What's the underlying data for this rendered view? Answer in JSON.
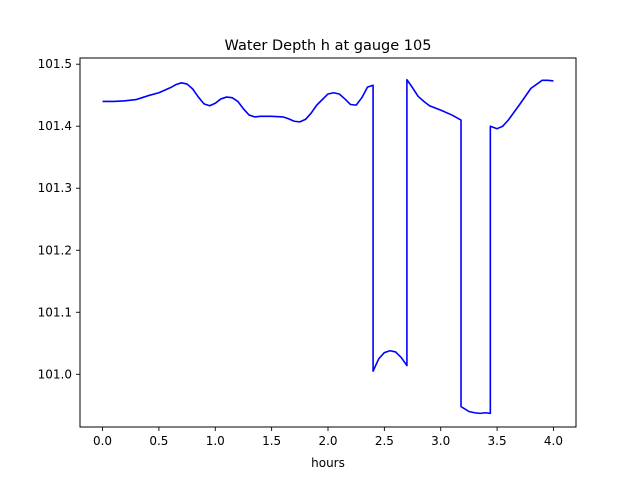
{
  "chart_data": {
    "type": "line",
    "title": "Water Depth h at gauge 105",
    "xlabel": "hours",
    "ylabel": "",
    "xlim": [
      -0.2,
      4.2
    ],
    "ylim": [
      100.915,
      101.51
    ],
    "xticks": [
      0.0,
      0.5,
      1.0,
      1.5,
      2.0,
      2.5,
      3.0,
      3.5,
      4.0
    ],
    "xtick_labels": [
      "0.0",
      "0.5",
      "1.0",
      "1.5",
      "2.0",
      "2.5",
      "3.0",
      "3.5",
      "4.0"
    ],
    "yticks": [
      101.0,
      101.1,
      101.2,
      101.3,
      101.4,
      101.5
    ],
    "ytick_labels": [
      "101.0",
      "101.1",
      "101.2",
      "101.3",
      "101.4",
      "101.5"
    ],
    "grid": false,
    "series": [
      {
        "color": "#0000ff",
        "x": [
          0.0,
          0.1,
          0.2,
          0.3,
          0.35,
          0.4,
          0.5,
          0.6,
          0.65,
          0.7,
          0.75,
          0.8,
          0.85,
          0.9,
          0.95,
          1.0,
          1.05,
          1.1,
          1.15,
          1.2,
          1.25,
          1.3,
          1.35,
          1.4,
          1.5,
          1.6,
          1.65,
          1.7,
          1.75,
          1.8,
          1.85,
          1.9,
          2.0,
          2.05,
          2.1,
          2.15,
          2.2,
          2.25,
          2.3,
          2.35,
          2.4,
          2.4,
          2.45,
          2.5,
          2.55,
          2.6,
          2.65,
          2.7,
          2.7,
          2.75,
          2.8,
          2.85,
          2.9,
          3.0,
          3.1,
          3.15,
          3.18,
          3.18,
          3.25,
          3.3,
          3.35,
          3.4,
          3.44,
          3.44,
          3.5,
          3.55,
          3.6,
          3.7,
          3.8,
          3.9,
          3.95,
          4.0
        ],
        "y": [
          101.44,
          101.44,
          101.441,
          101.443,
          101.446,
          101.449,
          101.454,
          101.462,
          101.467,
          101.47,
          101.468,
          101.46,
          101.447,
          101.436,
          101.433,
          101.437,
          101.444,
          101.447,
          101.446,
          101.44,
          101.428,
          101.418,
          101.415,
          101.416,
          101.416,
          101.415,
          101.412,
          101.408,
          101.407,
          101.411,
          101.421,
          101.434,
          101.452,
          101.454,
          101.452,
          101.444,
          101.435,
          101.434,
          101.446,
          101.463,
          101.466,
          101.005,
          101.025,
          101.035,
          101.038,
          101.036,
          101.027,
          101.014,
          101.475,
          101.462,
          101.448,
          101.44,
          101.433,
          101.426,
          101.418,
          101.413,
          101.41,
          100.948,
          100.94,
          100.938,
          100.937,
          100.938,
          100.937,
          101.4,
          101.396,
          101.4,
          101.41,
          101.435,
          101.461,
          101.474,
          101.474,
          101.473
        ]
      }
    ]
  }
}
